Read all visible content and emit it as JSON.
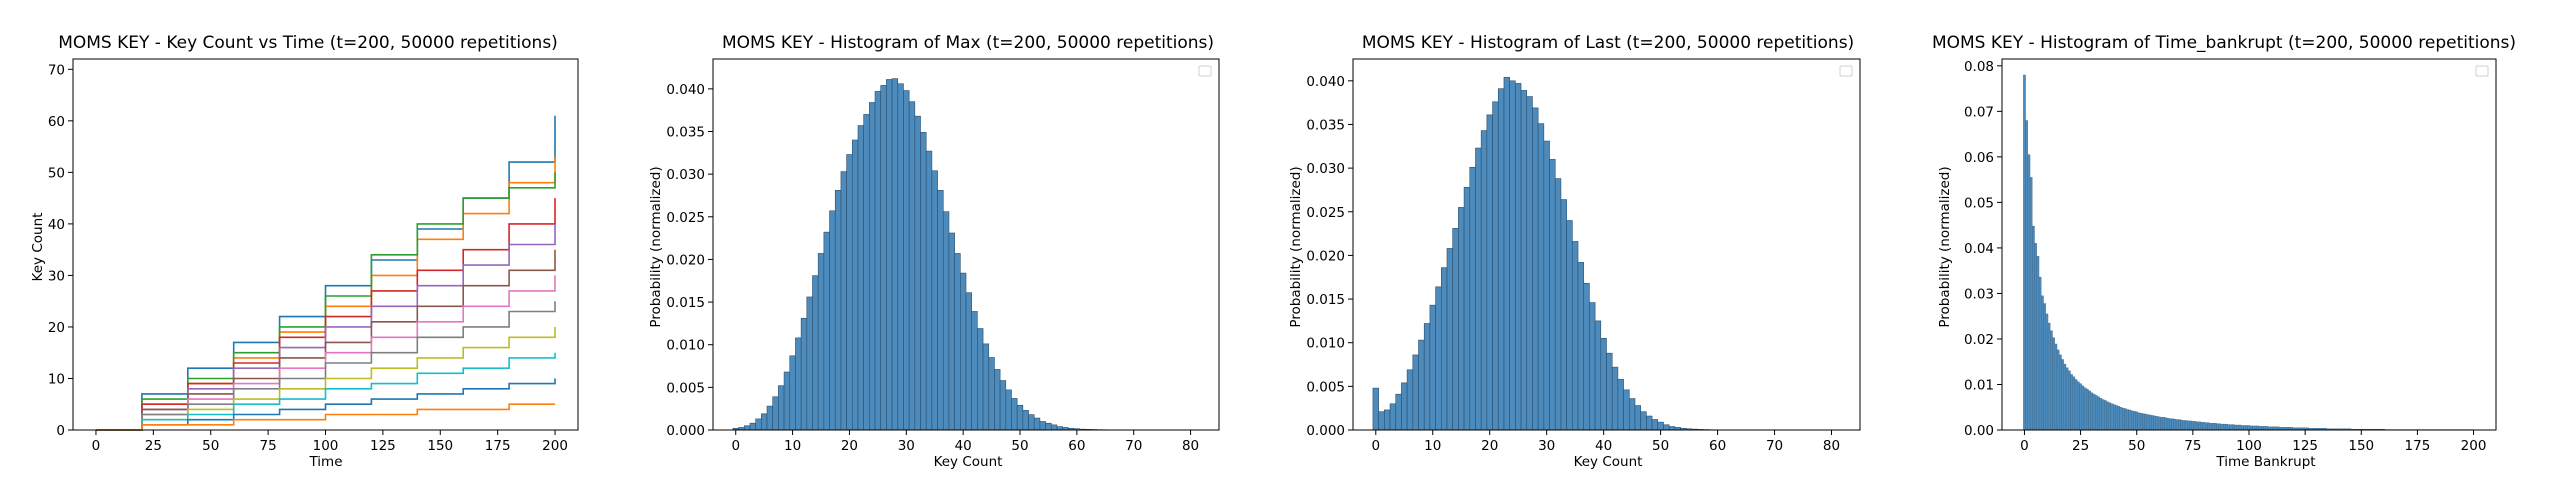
{
  "figure": {
    "background": "#ffffff"
  },
  "chart_data": [
    {
      "type": "line",
      "title": "MOMS KEY - Key Count vs Time (t=200, 50000 repetitions)",
      "xlabel": "Time",
      "ylabel": "Key Count",
      "xlim": [
        -10,
        210
      ],
      "ylim": [
        0,
        72
      ],
      "xticks": [
        0,
        25,
        50,
        75,
        100,
        125,
        150,
        175,
        200
      ],
      "yticks": [
        0,
        10,
        20,
        30,
        40,
        50,
        60,
        70
      ],
      "grid": false,
      "legend": "none",
      "colors": [
        "#1f77b4",
        "#ff7f0e",
        "#2ca02c",
        "#d62728",
        "#9467bd",
        "#8c564b",
        "#e377c2",
        "#7f7f7f",
        "#bcbd22",
        "#17becf"
      ],
      "series": [
        {
          "x": [
            0,
            20,
            40,
            60,
            80,
            100,
            120,
            140,
            160,
            180,
            200
          ],
          "values": [
            0,
            7,
            12,
            17,
            22,
            28,
            33,
            39,
            45,
            52,
            61
          ]
        },
        {
          "x": [
            0,
            20,
            40,
            60,
            80,
            100,
            120,
            140,
            160,
            180,
            200
          ],
          "values": [
            0,
            5,
            9,
            14,
            19,
            24,
            30,
            37,
            42,
            48,
            53
          ]
        },
        {
          "x": [
            0,
            20,
            40,
            60,
            80,
            100,
            120,
            140,
            160,
            180,
            200
          ],
          "values": [
            0,
            6,
            10,
            15,
            20,
            26,
            34,
            40,
            45,
            47,
            50
          ]
        },
        {
          "x": [
            0,
            20,
            40,
            60,
            80,
            100,
            120,
            140,
            160,
            180,
            200
          ],
          "values": [
            0,
            5,
            9,
            13,
            18,
            22,
            27,
            31,
            35,
            40,
            45
          ]
        },
        {
          "x": [
            0,
            20,
            40,
            60,
            80,
            100,
            120,
            140,
            160,
            180,
            200
          ],
          "values": [
            0,
            4,
            8,
            12,
            16,
            20,
            24,
            28,
            32,
            36,
            40
          ]
        },
        {
          "x": [
            0,
            20,
            40,
            60,
            80,
            100,
            120,
            140,
            160,
            180,
            200
          ],
          "values": [
            0,
            4,
            7,
            10,
            14,
            17,
            21,
            24,
            28,
            31,
            35
          ]
        },
        {
          "x": [
            0,
            20,
            40,
            60,
            80,
            100,
            120,
            140,
            160,
            180,
            200
          ],
          "values": [
            0,
            3,
            6,
            9,
            12,
            15,
            18,
            21,
            24,
            27,
            30
          ]
        },
        {
          "x": [
            0,
            20,
            40,
            60,
            80,
            100,
            120,
            140,
            160,
            180,
            200
          ],
          "values": [
            0,
            3,
            5,
            8,
            10,
            13,
            15,
            18,
            20,
            23,
            25
          ]
        },
        {
          "x": [
            0,
            20,
            40,
            60,
            80,
            100,
            120,
            140,
            160,
            180,
            200
          ],
          "values": [
            0,
            2,
            4,
            6,
            8,
            10,
            12,
            14,
            16,
            18,
            20
          ]
        },
        {
          "x": [
            0,
            20,
            40,
            60,
            80,
            100,
            120,
            140,
            160,
            180,
            200
          ],
          "values": [
            0,
            2,
            3,
            5,
            6,
            8,
            9,
            11,
            12,
            14,
            15
          ]
        },
        {
          "x": [
            0,
            20,
            40,
            60,
            80,
            100,
            120,
            140,
            160,
            180,
            200
          ],
          "values": [
            0,
            1,
            2,
            3,
            4,
            5,
            6,
            7,
            8,
            9,
            10
          ]
        },
        {
          "x": [
            0,
            20,
            40,
            60,
            80,
            100,
            120,
            140,
            160,
            180,
            200
          ],
          "values": [
            0,
            1,
            1,
            2,
            2,
            3,
            3,
            4,
            4,
            5,
            5
          ]
        }
      ]
    },
    {
      "type": "bar",
      "title": "MOMS KEY - Histogram of Max (t=200, 50000 repetitions)",
      "xlabel": "Key Count",
      "ylabel": "Probability (normalized)",
      "xlim": [
        -4,
        85
      ],
      "ylim": [
        0,
        0.0435
      ],
      "xticks": [
        0,
        10,
        20,
        30,
        40,
        50,
        60,
        70,
        80
      ],
      "yticks": [
        0,
        0.005,
        0.01,
        0.015,
        0.02,
        0.025,
        0.03,
        0.035,
        0.04
      ],
      "ytick_labels": [
        "0.000",
        "0.005",
        "0.010",
        "0.015",
        "0.020",
        "0.025",
        "0.030",
        "0.035",
        "0.040"
      ],
      "bar_color": "#4c8bbb",
      "legend": "top-right",
      "x": [
        0,
        1,
        2,
        3,
        4,
        5,
        6,
        7,
        8,
        9,
        10,
        11,
        12,
        13,
        14,
        15,
        16,
        17,
        18,
        19,
        20,
        21,
        22,
        23,
        24,
        25,
        26,
        27,
        28,
        29,
        30,
        31,
        32,
        33,
        34,
        35,
        36,
        37,
        38,
        39,
        40,
        41,
        42,
        43,
        44,
        45,
        46,
        47,
        48,
        49,
        50,
        51,
        52,
        53,
        54,
        55,
        56,
        57,
        58,
        59,
        60,
        61,
        62,
        63,
        64,
        65,
        66,
        67,
        68,
        69,
        70,
        71,
        72,
        73,
        74,
        75,
        76,
        77,
        78,
        79,
        80
      ],
      "values": [
        0.0002,
        0.0003,
        0.0005,
        0.0008,
        0.0013,
        0.0019,
        0.0028,
        0.0039,
        0.0052,
        0.0068,
        0.0087,
        0.0108,
        0.0131,
        0.0156,
        0.0181,
        0.0207,
        0.0232,
        0.0257,
        0.0281,
        0.0303,
        0.0323,
        0.034,
        0.0357,
        0.037,
        0.0384,
        0.0397,
        0.0404,
        0.0411,
        0.0412,
        0.0406,
        0.0398,
        0.0385,
        0.0368,
        0.0349,
        0.0327,
        0.0304,
        0.0281,
        0.0256,
        0.0231,
        0.0207,
        0.0184,
        0.0161,
        0.0139,
        0.0119,
        0.0101,
        0.0085,
        0.0071,
        0.0058,
        0.0047,
        0.0037,
        0.0029,
        0.0023,
        0.0018,
        0.0014,
        0.001,
        0.0008,
        0.0006,
        0.0004,
        0.0003,
        0.0002,
        0.00015,
        0.0001,
        8e-05,
        6e-05,
        4e-05,
        3e-05,
        2e-05,
        1e-05,
        1e-05,
        0,
        0,
        0,
        0,
        0,
        0,
        0,
        0,
        0,
        0,
        0,
        0
      ]
    },
    {
      "type": "bar",
      "title": "MOMS KEY - Histogram of Last (t=200, 50000 repetitions)",
      "xlabel": "Key Count",
      "ylabel": "Probability (normalized)",
      "xlim": [
        -4,
        85
      ],
      "ylim": [
        0,
        0.0425
      ],
      "xticks": [
        0,
        10,
        20,
        30,
        40,
        50,
        60,
        70,
        80
      ],
      "yticks": [
        0,
        0.005,
        0.01,
        0.015,
        0.02,
        0.025,
        0.03,
        0.035,
        0.04
      ],
      "ytick_labels": [
        "0.000",
        "0.005",
        "0.010",
        "0.015",
        "0.020",
        "0.025",
        "0.030",
        "0.035",
        "0.040"
      ],
      "bar_color": "#4c8bbb",
      "legend": "top-right",
      "x": [
        0,
        1,
        2,
        3,
        4,
        5,
        6,
        7,
        8,
        9,
        10,
        11,
        12,
        13,
        14,
        15,
        16,
        17,
        18,
        19,
        20,
        21,
        22,
        23,
        24,
        25,
        26,
        27,
        28,
        29,
        30,
        31,
        32,
        33,
        34,
        35,
        36,
        37,
        38,
        39,
        40,
        41,
        42,
        43,
        44,
        45,
        46,
        47,
        48,
        49,
        50,
        51,
        52,
        53,
        54,
        55,
        56,
        57,
        58,
        59,
        60,
        61,
        62,
        63,
        64,
        65,
        66,
        67,
        68,
        69,
        70,
        71,
        72,
        73,
        74,
        75,
        76,
        77,
        78,
        79,
        80
      ],
      "values": [
        0.0048,
        0.0021,
        0.0023,
        0.003,
        0.0041,
        0.0054,
        0.0069,
        0.0086,
        0.0103,
        0.0122,
        0.0143,
        0.0164,
        0.0186,
        0.0208,
        0.0231,
        0.0255,
        0.0278,
        0.0301,
        0.0323,
        0.0343,
        0.0361,
        0.0376,
        0.0391,
        0.0404,
        0.04,
        0.0397,
        0.0389,
        0.0382,
        0.0369,
        0.0351,
        0.0331,
        0.031,
        0.0288,
        0.0264,
        0.024,
        0.0216,
        0.0192,
        0.0168,
        0.0146,
        0.0125,
        0.0105,
        0.0088,
        0.0072,
        0.0058,
        0.0046,
        0.0036,
        0.0028,
        0.0021,
        0.0016,
        0.0012,
        0.0009,
        0.0006,
        0.0004,
        0.0003,
        0.0002,
        0.00014,
        0.0001,
        7e-05,
        5e-05,
        3e-05,
        2e-05,
        1e-05,
        1e-05,
        0,
        0,
        0,
        0,
        0,
        0,
        0,
        0,
        0,
        0,
        0,
        0,
        0,
        0,
        0,
        0,
        0,
        0
      ]
    },
    {
      "type": "bar",
      "title": "MOMS KEY - Histogram of Time_bankrupt (t=200, 50000 repetitions)",
      "xlabel": "Time Bankrupt",
      "ylabel": "Probability (normalized)",
      "xlim": [
        -10,
        210
      ],
      "ylim": [
        0,
        0.0815
      ],
      "xticks": [
        0,
        25,
        50,
        75,
        100,
        125,
        150,
        175,
        200
      ],
      "yticks": [
        0,
        0.01,
        0.02,
        0.03,
        0.04,
        0.05,
        0.06,
        0.07,
        0.08
      ],
      "ytick_labels": [
        "0.00",
        "0.01",
        "0.02",
        "0.03",
        "0.04",
        "0.05",
        "0.06",
        "0.07",
        "0.08"
      ],
      "bar_color": "#4c8bbb",
      "legend": "top-right",
      "x": [
        0,
        1,
        2,
        3,
        4,
        5,
        6,
        7,
        8,
        9,
        10,
        11,
        12,
        13,
        14,
        15,
        16,
        17,
        18,
        19,
        20,
        21,
        22,
        23,
        24,
        25,
        26,
        27,
        28,
        29,
        30,
        31,
        32,
        33,
        34,
        35,
        36,
        37,
        38,
        39,
        40,
        41,
        42,
        43,
        44,
        45,
        46,
        47,
        48,
        49,
        50,
        51,
        52,
        53,
        54,
        55,
        56,
        57,
        58,
        59,
        60,
        61,
        62,
        63,
        64,
        65,
        66,
        67,
        68,
        69,
        70,
        71,
        72,
        73,
        74,
        75,
        76,
        77,
        78,
        79,
        80,
        81,
        82,
        83,
        84,
        85,
        86,
        87,
        88,
        89,
        90,
        91,
        92,
        93,
        94,
        95,
        96,
        97,
        98,
        99,
        100,
        101,
        102,
        103,
        104,
        105,
        106,
        107,
        108,
        109,
        110,
        111,
        112,
        113,
        114,
        115,
        116,
        117,
        118,
        119,
        120,
        121,
        122,
        123,
        124,
        125,
        126,
        127,
        128,
        129,
        130,
        131,
        132,
        133,
        134,
        135,
        136,
        137,
        138,
        139,
        140,
        141,
        142,
        143,
        144,
        145,
        146,
        147,
        148,
        149,
        150,
        151,
        152,
        153,
        154,
        155,
        156,
        157,
        158,
        159,
        160,
        161,
        162,
        163,
        164,
        165,
        166,
        167,
        168,
        169,
        170,
        171,
        172,
        173,
        174,
        175,
        176,
        177,
        178,
        179,
        180,
        181,
        182,
        183,
        184,
        185,
        186,
        187,
        188,
        189,
        190,
        191,
        192,
        193,
        194,
        195,
        196,
        197,
        198,
        199
      ],
      "values": [
        0.078,
        0.068,
        0.0605,
        0.0555,
        0.0448,
        0.041,
        0.0382,
        0.0336,
        0.0295,
        0.0278,
        0.0255,
        0.0235,
        0.0218,
        0.0203,
        0.0189,
        0.0176,
        0.0165,
        0.0155,
        0.0145,
        0.0137,
        0.013,
        0.0122,
        0.0117,
        0.0111,
        0.0106,
        0.0102,
        0.0097,
        0.0093,
        0.009,
        0.0086,
        0.0082,
        0.0079,
        0.0076,
        0.0073,
        0.007,
        0.0067,
        0.0065,
        0.0062,
        0.006,
        0.0058,
        0.0056,
        0.0054,
        0.0052,
        0.005,
        0.0048,
        0.0047,
        0.0045,
        0.0044,
        0.0042,
        0.0041,
        0.004,
        0.0038,
        0.0037,
        0.0036,
        0.0035,
        0.0034,
        0.0033,
        0.0032,
        0.0031,
        0.003,
        0.0029,
        0.0028,
        0.0028,
        0.0027,
        0.0026,
        0.0025,
        0.0025,
        0.0024,
        0.0023,
        0.0023,
        0.0022,
        0.0021,
        0.0021,
        0.002,
        0.002,
        0.0019,
        0.0019,
        0.0018,
        0.0018,
        0.0017,
        0.0017,
        0.0016,
        0.0016,
        0.0015,
        0.0015,
        0.0015,
        0.0014,
        0.0014,
        0.0013,
        0.0013,
        0.0013,
        0.0012,
        0.0012,
        0.0012,
        0.0011,
        0.0011,
        0.0011,
        0.001,
        0.001,
        0.001,
        0.001,
        0.0009,
        0.0009,
        0.0009,
        0.0009,
        0.0008,
        0.0008,
        0.0008,
        0.0008,
        0.0007,
        0.0007,
        0.0007,
        0.0007,
        0.0007,
        0.0006,
        0.0006,
        0.0006,
        0.0006,
        0.0006,
        0.0006,
        0.0005,
        0.0005,
        0.0005,
        0.0005,
        0.0005,
        0.0005,
        0.0005,
        0.0004,
        0.0004,
        0.0004,
        0.0004,
        0.0004,
        0.0004,
        0.0004,
        0.0004,
        0.0003,
        0.0003,
        0.0003,
        0.0003,
        0.0003,
        0.0003,
        0.0003,
        0.0003,
        0.0003,
        0.0003,
        0.0003,
        0.0002,
        0.0002,
        0.0002,
        0.0002,
        0.0002,
        0.0002,
        0.0002,
        0.0002,
        0.0002,
        0.0002,
        0.0002,
        0.0002,
        0.0002,
        0.0002,
        0.0002,
        0.0001,
        0.0001,
        0.0001,
        0.0001,
        0.0001,
        0.0001,
        0.0001,
        0.0001,
        0.0001,
        0.0001,
        0.0001,
        0.0001,
        0.0001,
        0.0001,
        0.0001,
        0.0001,
        0.0001,
        0.0001,
        0.0001,
        0.0001,
        0.0001,
        0.0001,
        0.0001,
        0.0001,
        0.0001,
        0.0001,
        0.0001,
        0.0001,
        0.0001,
        0.0001,
        0.0001,
        0.0001,
        0.0001,
        0.0001,
        0.0001,
        0.0001,
        0.0001,
        0.0001,
        0.0001
      ]
    }
  ]
}
